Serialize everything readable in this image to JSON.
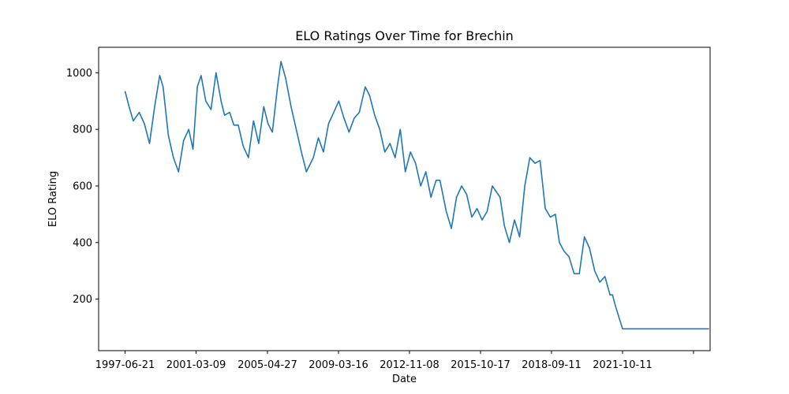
{
  "chart_data": {
    "type": "line",
    "title": "ELO Ratings Over Time for Brechin",
    "xlabel": "Date",
    "ylabel": "ELO Rating",
    "grid": false,
    "x_tick_labels": [
      "1997-06-21",
      "2001-03-09",
      "2005-04-27",
      "2009-03-16",
      "2012-11-08",
      "2015-10-17",
      "2018-09-11",
      "2021-10-11",
      ""
    ],
    "y_ticks": [
      200,
      400,
      600,
      800,
      1000
    ],
    "ylim": [
      18,
      1090
    ],
    "series": [
      {
        "color": "#1f77b4",
        "x": [
          "1997-06-21",
          "1997-09-01",
          "1997-11-15",
          "1998-03-01",
          "1998-06-01",
          "1998-09-01",
          "1998-12-01",
          "1999-03-01",
          "1999-05-01",
          "1999-08-01",
          "1999-11-01",
          "2000-02-01",
          "2000-05-01",
          "2000-08-01",
          "2000-10-15",
          "2001-01-01",
          "2001-03-09",
          "2001-06-01",
          "2001-09-01",
          "2001-12-01",
          "2002-03-01",
          "2002-05-01",
          "2002-08-01",
          "2002-10-15",
          "2003-01-01",
          "2003-04-01",
          "2003-07-01",
          "2003-10-01",
          "2004-01-01",
          "2004-04-01",
          "2004-06-15",
          "2004-09-01",
          "2004-12-01",
          "2005-02-01",
          "2005-04-27",
          "2005-08-01",
          "2005-11-01",
          "2006-02-01",
          "2006-05-01",
          "2006-09-01",
          "2006-12-01",
          "2007-03-01",
          "2007-06-01",
          "2007-09-01",
          "2007-12-01",
          "2008-03-01",
          "2008-06-01",
          "2008-09-01",
          "2008-12-01",
          "2009-03-16",
          "2009-06-01",
          "2009-09-01",
          "2009-12-01",
          "2010-03-01",
          "2010-06-01",
          "2010-09-01",
          "2010-12-01",
          "2011-03-01",
          "2011-06-01",
          "2011-09-01",
          "2011-12-01",
          "2012-03-01",
          "2012-06-01",
          "2012-09-01",
          "2012-11-08",
          "2013-03-01",
          "2013-06-01",
          "2013-09-01",
          "2013-12-01",
          "2014-03-01",
          "2014-06-01",
          "2014-09-01",
          "2014-12-01",
          "2015-03-01",
          "2015-06-01",
          "2015-10-17",
          "2016-01-01",
          "2016-04-01",
          "2016-07-01",
          "2016-10-01",
          "2017-01-01",
          "2017-04-01",
          "2017-07-01",
          "2017-10-01",
          "2018-01-01",
          "2018-04-01",
          "2018-07-01",
          "2018-09-11",
          "2018-12-01",
          "2019-03-01",
          "2019-06-01",
          "2019-09-01",
          "2019-12-01",
          "2020-03-01",
          "2020-06-01",
          "2020-09-01",
          "2020-12-01",
          "2021-03-01",
          "2021-04-15",
          "2021-06-01",
          "2021-10-11",
          "2022-06-01",
          "2023-01-01",
          "2024-01-01",
          "2025-01-01",
          "2026-01-01"
        ],
        "y": [
          935,
          880,
          830,
          860,
          820,
          750,
          880,
          990,
          950,
          780,
          700,
          650,
          760,
          800,
          730,
          950,
          990,
          900,
          870,
          1000,
          900,
          850,
          860,
          815,
          815,
          740,
          700,
          830,
          750,
          880,
          820,
          790,
          950,
          1040,
          980,
          880,
          800,
          720,
          650,
          700,
          770,
          720,
          820,
          860,
          900,
          840,
          790,
          840,
          860,
          950,
          920,
          850,
          800,
          720,
          750,
          700,
          800,
          650,
          720,
          680,
          600,
          650,
          560,
          620,
          620,
          510,
          450,
          560,
          600,
          570,
          490,
          520,
          480,
          510,
          600,
          560,
          460,
          400,
          480,
          420,
          600,
          700,
          680,
          690,
          520,
          490,
          500,
          400,
          370,
          350,
          290,
          290,
          420,
          380,
          300,
          260,
          280,
          215,
          215,
          180,
          95,
          95,
          95,
          95,
          95,
          95
        ]
      }
    ]
  }
}
